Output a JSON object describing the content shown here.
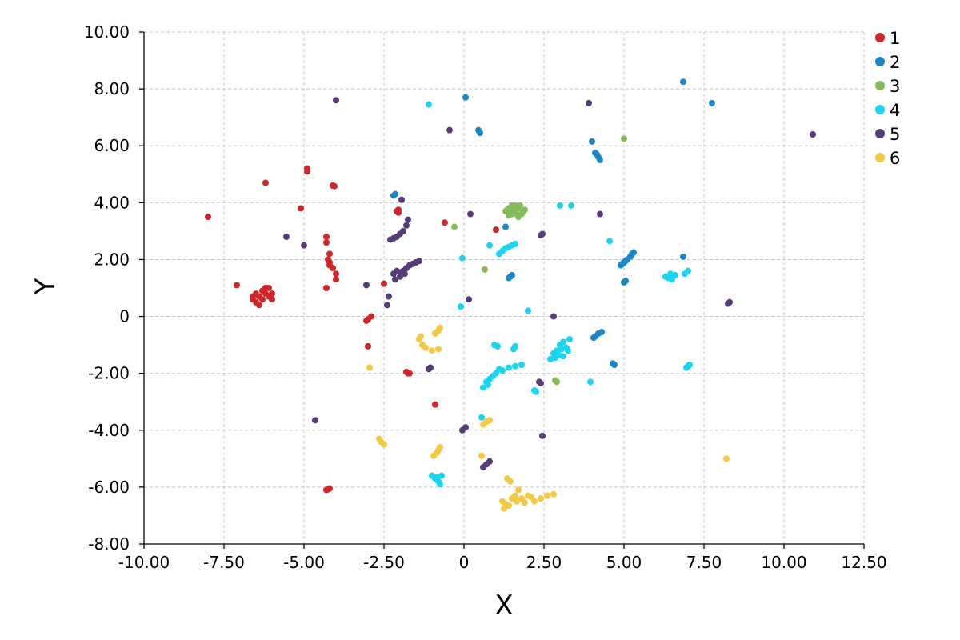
{
  "chart_data": {
    "type": "scatter",
    "title": "",
    "xlabel": "X",
    "ylabel": "Y",
    "xlim": [
      -10,
      12.5
    ],
    "ylim": [
      -8,
      10
    ],
    "xticks": [
      -10,
      -7.5,
      -5,
      -2.5,
      0,
      2.5,
      5,
      7.5,
      10,
      12.5
    ],
    "xtick_labels": [
      "-10.00",
      "-7.50",
      "-5.00",
      "-2.50",
      "0",
      "2.50",
      "5.00",
      "7.50",
      "10.00",
      "12.50"
    ],
    "yticks": [
      -8,
      -6,
      -4,
      -2,
      0,
      2,
      4,
      6,
      8,
      10
    ],
    "ytick_labels": [
      "-8.00",
      "-6.00",
      "-4.00",
      "-2.00",
      "0",
      "2.00",
      "4.00",
      "6.00",
      "8.00",
      "10.00"
    ],
    "grid": true,
    "legend_position": "top-right",
    "series": [
      {
        "name": "1",
        "color": "#d0262a",
        "points": [
          [
            -8.0,
            3.5
          ],
          [
            -7.1,
            1.1
          ],
          [
            -6.6,
            0.6
          ],
          [
            -6.5,
            0.5
          ],
          [
            -6.4,
            0.7
          ],
          [
            -6.3,
            0.9
          ],
          [
            -6.2,
            0.8
          ],
          [
            -6.1,
            1.0
          ],
          [
            -6.0,
            0.8
          ],
          [
            -6.5,
            0.8
          ],
          [
            -6.3,
            0.6
          ],
          [
            -6.4,
            0.4
          ],
          [
            -6.2,
            1.0
          ],
          [
            -6.0,
            0.6
          ],
          [
            -6.6,
            0.7
          ],
          [
            -6.1,
            0.7
          ],
          [
            -6.2,
            4.7
          ],
          [
            -5.1,
            3.8
          ],
          [
            -4.9,
            5.1
          ],
          [
            -4.9,
            5.2
          ],
          [
            -4.1,
            4.6
          ],
          [
            -4.05,
            4.58
          ],
          [
            -4.3,
            2.8
          ],
          [
            -4.3,
            2.6
          ],
          [
            -4.2,
            2.2
          ],
          [
            -4.25,
            2.0
          ],
          [
            -4.2,
            1.8
          ],
          [
            -4.1,
            1.7
          ],
          [
            -4.0,
            1.5
          ],
          [
            -4.0,
            1.3
          ],
          [
            -4.2,
            1.9
          ],
          [
            -4.3,
            1.0
          ],
          [
            -3.0,
            -0.1
          ],
          [
            -2.9,
            0.0
          ],
          [
            -3.05,
            -0.15
          ],
          [
            -3.0,
            -1.05
          ],
          [
            -2.5,
            1.15
          ],
          [
            -2.1,
            3.7
          ],
          [
            -2.05,
            3.75
          ],
          [
            -2.05,
            3.65
          ],
          [
            -1.7,
            -2.0
          ],
          [
            -1.8,
            -1.95
          ],
          [
            -1.75,
            -2.0
          ],
          [
            -0.9,
            -3.1
          ],
          [
            -0.6,
            3.3
          ],
          [
            1.0,
            3.05
          ],
          [
            -4.3,
            -6.1
          ],
          [
            -4.2,
            -6.05
          ],
          [
            -4.25,
            -6.08
          ]
        ]
      },
      {
        "name": "2",
        "color": "#1a88c6",
        "points": [
          [
            6.85,
            8.25
          ],
          [
            7.75,
            7.5
          ],
          [
            0.05,
            7.7
          ],
          [
            0.45,
            6.55
          ],
          [
            0.5,
            6.45
          ],
          [
            4.0,
            6.15
          ],
          [
            4.1,
            5.75
          ],
          [
            4.15,
            5.7
          ],
          [
            4.2,
            5.6
          ],
          [
            4.25,
            5.5
          ],
          [
            -2.2,
            4.25
          ],
          [
            -2.15,
            4.3
          ],
          [
            1.3,
            3.15
          ],
          [
            4.9,
            1.8
          ],
          [
            5.0,
            1.9
          ],
          [
            5.1,
            2.0
          ],
          [
            5.2,
            2.1
          ],
          [
            5.25,
            2.2
          ],
          [
            5.3,
            2.25
          ],
          [
            4.95,
            1.85
          ],
          [
            5.05,
            1.95
          ],
          [
            6.85,
            2.1
          ],
          [
            5.0,
            1.2
          ],
          [
            5.05,
            1.25
          ],
          [
            1.4,
            1.35
          ],
          [
            1.45,
            1.4
          ],
          [
            1.5,
            1.45
          ],
          [
            4.05,
            -0.75
          ],
          [
            4.1,
            -0.7
          ],
          [
            4.2,
            -0.6
          ],
          [
            4.3,
            -0.55
          ],
          [
            4.65,
            -1.65
          ],
          [
            4.7,
            -1.7
          ]
        ]
      },
      {
        "name": "3",
        "color": "#84bb5b",
        "points": [
          [
            5.0,
            6.25
          ],
          [
            1.3,
            3.7
          ],
          [
            1.4,
            3.8
          ],
          [
            1.5,
            3.9
          ],
          [
            1.6,
            3.7
          ],
          [
            1.7,
            3.8
          ],
          [
            1.8,
            3.6
          ],
          [
            1.9,
            3.75
          ],
          [
            1.5,
            3.6
          ],
          [
            1.6,
            3.9
          ],
          [
            1.35,
            3.75
          ],
          [
            1.45,
            3.65
          ],
          [
            1.55,
            3.8
          ],
          [
            1.65,
            3.6
          ],
          [
            1.75,
            3.9
          ],
          [
            1.85,
            3.7
          ],
          [
            1.7,
            3.5
          ],
          [
            1.4,
            3.55
          ],
          [
            -0.3,
            3.15
          ],
          [
            0.65,
            1.65
          ],
          [
            2.85,
            -2.25
          ],
          [
            2.9,
            -2.3
          ]
        ]
      },
      {
        "name": "4",
        "color": "#19d5ef",
        "points": [
          [
            -1.1,
            7.45
          ],
          [
            3.0,
            3.9
          ],
          [
            3.35,
            3.9
          ],
          [
            0.8,
            2.5
          ],
          [
            4.55,
            2.65
          ],
          [
            1.1,
            2.2
          ],
          [
            1.2,
            2.3
          ],
          [
            1.3,
            2.4
          ],
          [
            1.5,
            2.5
          ],
          [
            1.6,
            2.55
          ],
          [
            1.4,
            2.45
          ],
          [
            -0.05,
            2.05
          ],
          [
            -0.1,
            0.35
          ],
          [
            2.0,
            0.2
          ],
          [
            6.3,
            1.4
          ],
          [
            6.4,
            1.35
          ],
          [
            6.5,
            1.3
          ],
          [
            6.6,
            1.45
          ],
          [
            6.9,
            1.5
          ],
          [
            7.0,
            1.6
          ],
          [
            6.45,
            1.5
          ],
          [
            0.95,
            -1.0
          ],
          [
            1.05,
            -1.05
          ],
          [
            1.6,
            -1.05
          ],
          [
            1.55,
            -1.15
          ],
          [
            0.6,
            -2.5
          ],
          [
            0.7,
            -2.3
          ],
          [
            0.8,
            -2.2
          ],
          [
            0.9,
            -2.1
          ],
          [
            1.0,
            -2.0
          ],
          [
            1.2,
            -1.9
          ],
          [
            1.4,
            -1.8
          ],
          [
            1.6,
            -1.75
          ],
          [
            1.8,
            -1.7
          ],
          [
            0.75,
            -2.4
          ],
          [
            1.1,
            -1.85
          ],
          [
            2.2,
            -2.6
          ],
          [
            2.25,
            -2.65
          ],
          [
            2.7,
            -1.5
          ],
          [
            2.8,
            -1.3
          ],
          [
            2.9,
            -1.2
          ],
          [
            3.0,
            -1.0
          ],
          [
            3.1,
            -0.9
          ],
          [
            3.2,
            -1.1
          ],
          [
            3.3,
            -0.8
          ],
          [
            3.1,
            -1.4
          ],
          [
            2.95,
            -1.35
          ],
          [
            3.25,
            -1.2
          ],
          [
            2.85,
            -1.45
          ],
          [
            3.05,
            -1.15
          ],
          [
            3.95,
            -2.3
          ],
          [
            7.0,
            -1.75
          ],
          [
            7.05,
            -1.7
          ],
          [
            6.95,
            -1.8
          ],
          [
            -1.0,
            -5.6
          ],
          [
            -0.9,
            -5.7
          ],
          [
            -0.8,
            -5.8
          ],
          [
            -0.7,
            -5.6
          ],
          [
            -0.75,
            -5.9
          ],
          [
            -0.85,
            -5.65
          ],
          [
            0.55,
            -3.55
          ]
        ]
      },
      {
        "name": "5",
        "color": "#573c7a",
        "points": [
          [
            -4.0,
            7.6
          ],
          [
            3.9,
            7.5
          ],
          [
            10.9,
            6.4
          ],
          [
            -0.45,
            6.55
          ],
          [
            -1.95,
            4.1
          ],
          [
            0.2,
            3.6
          ],
          [
            4.25,
            3.6
          ],
          [
            -5.55,
            2.8
          ],
          [
            -5.0,
            2.5
          ],
          [
            -3.05,
            1.1
          ],
          [
            -2.3,
            2.7
          ],
          [
            -2.1,
            2.8
          ],
          [
            -1.9,
            3.0
          ],
          [
            -1.8,
            3.2
          ],
          [
            -1.75,
            3.4
          ],
          [
            -2.0,
            2.9
          ],
          [
            -2.2,
            2.75
          ],
          [
            -2.2,
            1.5
          ],
          [
            -2.1,
            1.6
          ],
          [
            -2.0,
            1.55
          ],
          [
            -1.9,
            1.6
          ],
          [
            -1.8,
            1.7
          ],
          [
            -1.7,
            1.8
          ],
          [
            -1.6,
            1.85
          ],
          [
            -1.5,
            1.9
          ],
          [
            -1.4,
            1.95
          ],
          [
            -2.15,
            1.3
          ],
          [
            -2.0,
            1.4
          ],
          [
            -1.85,
            1.5
          ],
          [
            -2.4,
            0.4
          ],
          [
            -2.35,
            0.7
          ],
          [
            2.4,
            2.85
          ],
          [
            2.45,
            2.9
          ],
          [
            0.15,
            0.6
          ],
          [
            2.8,
            0.0
          ],
          [
            8.25,
            0.45
          ],
          [
            8.3,
            0.5
          ],
          [
            -1.1,
            -1.85
          ],
          [
            -1.05,
            -1.8
          ],
          [
            2.4,
            -2.35
          ],
          [
            2.35,
            -2.3
          ],
          [
            -4.65,
            -3.65
          ],
          [
            -0.05,
            -4.0
          ],
          [
            0.05,
            -3.9
          ],
          [
            2.45,
            -4.2
          ],
          [
            0.6,
            -5.3
          ],
          [
            0.7,
            -5.2
          ],
          [
            0.8,
            -5.1
          ]
        ]
      },
      {
        "name": "6",
        "color": "#f3c843",
        "points": [
          [
            -1.4,
            -0.8
          ],
          [
            -1.3,
            -1.0
          ],
          [
            -1.2,
            -1.1
          ],
          [
            -1.0,
            -1.2
          ],
          [
            -0.8,
            -1.15
          ],
          [
            -1.35,
            -0.7
          ],
          [
            -0.9,
            -0.6
          ],
          [
            -0.8,
            -0.5
          ],
          [
            -0.75,
            -0.4
          ],
          [
            -2.95,
            -1.8
          ],
          [
            0.7,
            -3.7
          ],
          [
            0.8,
            -3.65
          ],
          [
            0.6,
            -3.8
          ],
          [
            -2.65,
            -4.3
          ],
          [
            -2.6,
            -4.4
          ],
          [
            -2.5,
            -4.5
          ],
          [
            -0.95,
            -4.9
          ],
          [
            -0.85,
            -4.8
          ],
          [
            -0.8,
            -4.7
          ],
          [
            -0.75,
            -4.6
          ],
          [
            0.55,
            -4.9
          ],
          [
            8.2,
            -5.0
          ],
          [
            1.35,
            -5.7
          ],
          [
            1.45,
            -5.8
          ],
          [
            1.2,
            -6.5
          ],
          [
            1.3,
            -6.6
          ],
          [
            1.5,
            -6.4
          ],
          [
            1.6,
            -6.3
          ],
          [
            1.7,
            -6.1
          ],
          [
            1.8,
            -6.4
          ],
          [
            2.0,
            -6.3
          ],
          [
            2.2,
            -6.5
          ],
          [
            2.4,
            -6.4
          ],
          [
            2.6,
            -6.3
          ],
          [
            2.8,
            -6.25
          ],
          [
            1.25,
            -6.75
          ],
          [
            1.4,
            -6.65
          ],
          [
            1.9,
            -6.55
          ],
          [
            2.1,
            -6.35
          ],
          [
            1.65,
            -6.5
          ]
        ]
      }
    ]
  }
}
